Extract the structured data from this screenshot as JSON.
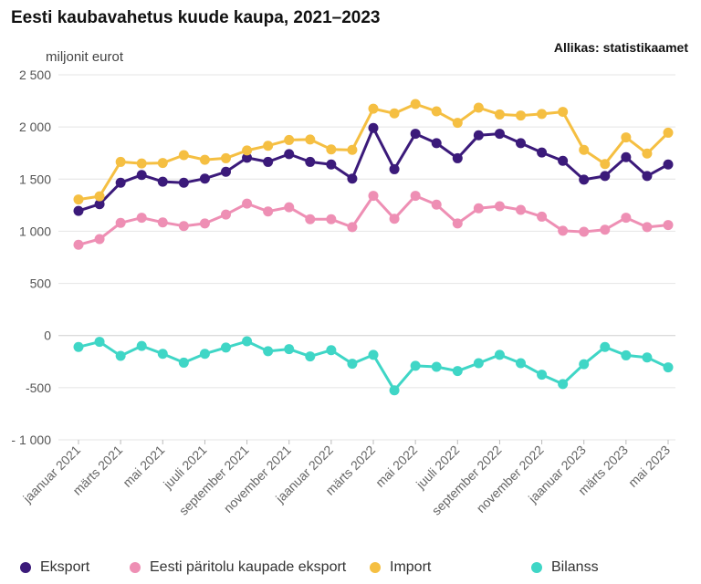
{
  "header": {
    "title": "Eesti kaubavahetus kuude kaupa, 2021–2023",
    "source": "Allikas: statistikaamet"
  },
  "chart_data": {
    "type": "line",
    "title": "Eesti kaubavahetus kuude kaupa, 2021–2023",
    "ylabel": "miljonit eurot",
    "xlabel": "",
    "ylim": [
      -1000,
      2500
    ],
    "yticks": [
      -1000,
      -500,
      0,
      500,
      1000,
      1500,
      2000,
      2500
    ],
    "ytick_labels": [
      "- 1 000",
      "-500",
      "0",
      "500",
      "1 000",
      "1 500",
      "2 000",
      "2 500"
    ],
    "grid": true,
    "legend_position": "bottom",
    "x_tick_labels": [
      "jaanuar 2021",
      "märts 2021",
      "mai 2021",
      "juuli 2021",
      "september 2021",
      "november 2021",
      "jaanuar 2022",
      "märts 2022",
      "mai 2022",
      "juuli 2022",
      "september 2022",
      "november 2022",
      "jaanuar 2023",
      "märts 2023",
      "mai 2023"
    ],
    "series": [
      {
        "name": "Eksport",
        "color": "#3b1a7a",
        "values": [
          1195,
          1260,
          1465,
          1540,
          1475,
          1465,
          1505,
          1570,
          1705,
          1665,
          1740,
          1665,
          1640,
          1505,
          1990,
          1595,
          1935,
          1845,
          1700,
          1920,
          1935,
          1845,
          1755,
          1675,
          1495,
          1530,
          1710,
          1530,
          1640
        ]
      },
      {
        "name": "Eesti päritolu kaupade eksport",
        "color": "#ee8fb4",
        "values": [
          870,
          925,
          1080,
          1130,
          1085,
          1050,
          1075,
          1160,
          1265,
          1190,
          1230,
          1115,
          1115,
          1040,
          1340,
          1120,
          1340,
          1255,
          1075,
          1220,
          1240,
          1205,
          1140,
          1005,
          995,
          1015,
          1130,
          1040,
          1060
        ]
      },
      {
        "name": "Import",
        "color": "#f5bf42",
        "values": [
          1305,
          1335,
          1665,
          1650,
          1655,
          1730,
          1685,
          1700,
          1775,
          1820,
          1875,
          1880,
          1785,
          1780,
          2175,
          2130,
          2220,
          2150,
          2040,
          2185,
          2120,
          2110,
          2125,
          2145,
          1780,
          1645,
          1900,
          1745,
          1945
        ]
      },
      {
        "name": "Bilanss",
        "color": "#3fd6c6",
        "values": [
          -110,
          -60,
          -195,
          -100,
          -175,
          -260,
          -175,
          -115,
          -55,
          -150,
          -130,
          -200,
          -140,
          -270,
          -185,
          -525,
          -290,
          -300,
          -340,
          -265,
          -185,
          -265,
          -375,
          -465,
          -275,
          -110,
          -190,
          -210,
          -305
        ]
      }
    ]
  }
}
